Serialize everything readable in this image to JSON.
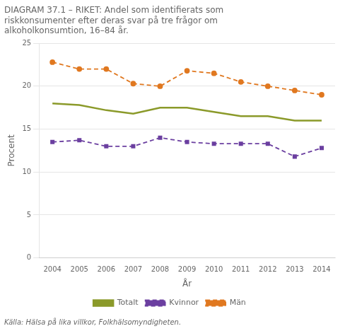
{
  "chart_data": {
    "type": "line",
    "title": [
      "DIAGRAM 37.1 – RIKET: Andel som identifierats som",
      "riskkonsumenter efter deras svar på tre frågor om",
      "alkoholkonsumtion, 16–84 år."
    ],
    "y_label": "Procent",
    "x_label": "År",
    "annotations": [
      "Källa: Hälsa på lika villkor, Folkhälsomyndigheten."
    ],
    "x": [
      2004,
      2005,
      2006,
      2007,
      2008,
      2009,
      2010,
      2011,
      2012,
      2013,
      2014
    ],
    "series": [
      {
        "name": "Totalt",
        "color": "#8B9A2A",
        "marker": "none",
        "line_style": "solid",
        "values": [
          18.0,
          17.8,
          17.2,
          16.8,
          17.5,
          17.5,
          17.0,
          16.5,
          16.5,
          16.0,
          16.0
        ]
      },
      {
        "name": "Kvinnor",
        "color": "#6B3FA0",
        "marker": "square",
        "line_style": "dashed",
        "values": [
          13.5,
          13.7,
          13.0,
          13.0,
          14.0,
          13.5,
          13.3,
          13.3,
          13.3,
          11.8,
          12.8
        ]
      },
      {
        "name": "Män",
        "color": "#E07820",
        "marker": "circle",
        "line_style": "dashed",
        "values": [
          22.8,
          22.0,
          22.0,
          20.3,
          20.0,
          21.8,
          21.5,
          20.5,
          20.0,
          19.5,
          19.0
        ]
      }
    ],
    "xlim": [
      2003.5,
      2014.5
    ],
    "xticks": [
      2004,
      2005,
      2006,
      2007,
      2008,
      2009,
      2010,
      2011,
      2012,
      2013,
      2014
    ],
    "ylim": [
      0,
      25
    ],
    "yticks": [
      0,
      5,
      10,
      15,
      20,
      25
    ],
    "grid": "y",
    "legend": "bottom"
  }
}
